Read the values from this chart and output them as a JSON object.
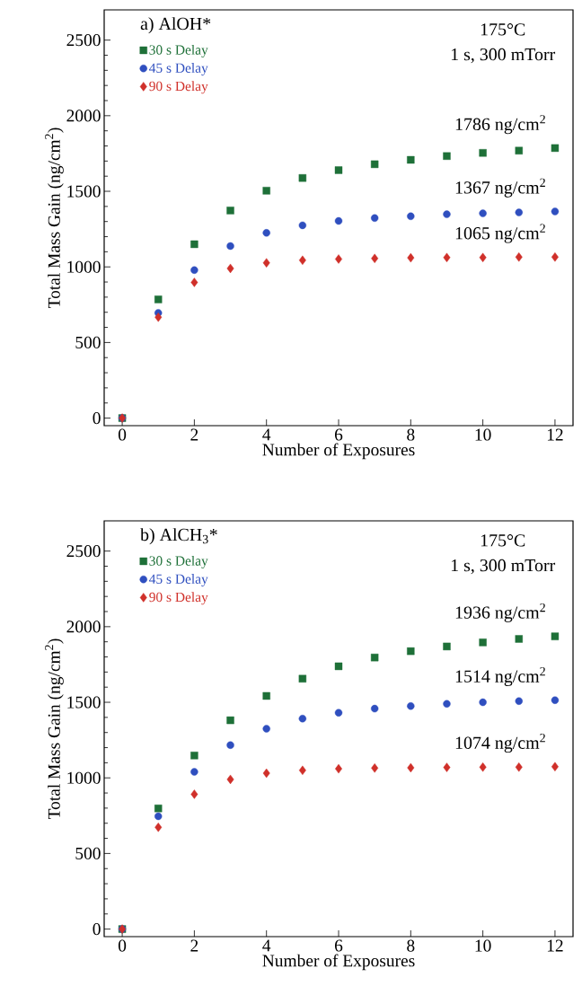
{
  "chart_data": [
    {
      "type": "scatter",
      "title": "a) AlOH*",
      "xlabel": "Number of Exposures",
      "ylabel": "Total Mass Gain (ng/cm$^{2}$)",
      "x": [
        0,
        1,
        2,
        3,
        4,
        5,
        6,
        7,
        8,
        9,
        10,
        11,
        12
      ],
      "series": [
        {
          "name": "30 s Delay",
          "color": "#1e7038",
          "marker": "square",
          "values": [
            0,
            785,
            1150,
            1373,
            1504,
            1588,
            1640,
            1679,
            1708,
            1733,
            1754,
            1769,
            1786
          ]
        },
        {
          "name": "45 s Delay",
          "color": "#2f4fbf",
          "marker": "circle",
          "values": [
            0,
            696,
            979,
            1138,
            1225,
            1275,
            1304,
            1323,
            1335,
            1348,
            1354,
            1360,
            1367
          ]
        },
        {
          "name": "90 s Delay",
          "color": "#d0302a",
          "marker": "diamond",
          "values": [
            0,
            667,
            898,
            990,
            1027,
            1044,
            1052,
            1056,
            1060,
            1062,
            1062,
            1065,
            1065
          ]
        }
      ],
      "xlim": [
        -0.5,
        12.5
      ],
      "ylim": [
        -50,
        2700
      ],
      "xticks": [
        0,
        2,
        4,
        6,
        8,
        10,
        12
      ],
      "yticks": [
        0,
        500,
        1000,
        1500,
        2000,
        2500
      ],
      "legend": "top left",
      "annotations": [
        "175°C",
        "1 s, 300 mTorr",
        "1786 ng/cm$^{2}$",
        "1367 ng/cm$^{2}$",
        "1065 ng/cm$^{2}$"
      ]
    },
    {
      "type": "scatter",
      "title": "b) AlCH$_{3}$*",
      "xlabel": "Number of Exposures",
      "ylabel": "Total Mass Gain (ng/cm$^{2}$)",
      "x": [
        0,
        1,
        2,
        3,
        4,
        5,
        6,
        7,
        8,
        9,
        10,
        11,
        12
      ],
      "series": [
        {
          "name": "30 s Delay",
          "color": "#1e7038",
          "marker": "square",
          "values": [
            0,
            798,
            1148,
            1381,
            1542,
            1656,
            1738,
            1796,
            1838,
            1869,
            1896,
            1919,
            1936
          ]
        },
        {
          "name": "45 s Delay",
          "color": "#2f4fbf",
          "marker": "circle",
          "values": [
            0,
            746,
            1040,
            1217,
            1325,
            1392,
            1431,
            1458,
            1475,
            1490,
            1500,
            1508,
            1514
          ]
        },
        {
          "name": "90 s Delay",
          "color": "#d0302a",
          "marker": "diamond",
          "values": [
            0,
            673,
            892,
            990,
            1031,
            1050,
            1060,
            1065,
            1067,
            1069,
            1071,
            1071,
            1074
          ]
        }
      ],
      "xlim": [
        -0.5,
        12.5
      ],
      "ylim": [
        -50,
        2700
      ],
      "xticks": [
        0,
        2,
        4,
        6,
        8,
        10,
        12
      ],
      "yticks": [
        0,
        500,
        1000,
        1500,
        2000,
        2500
      ],
      "legend": "top left",
      "annotations": [
        "175°C",
        "1 s, 300 mTorr",
        "1936 ng/cm$^{2}$",
        "1514 ng/cm$^{2}$",
        "1074 ng/cm$^{2}$"
      ]
    }
  ]
}
